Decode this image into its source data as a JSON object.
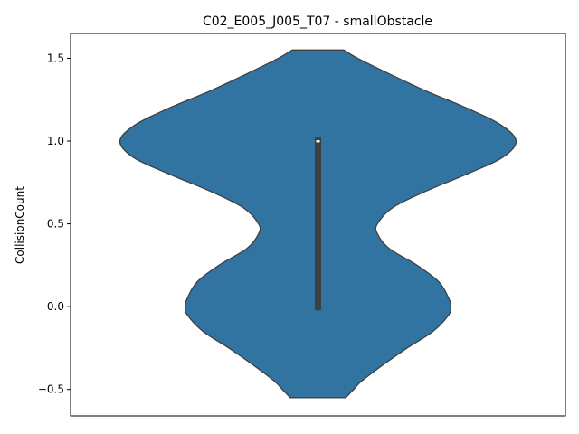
{
  "chart_data": {
    "type": "violin",
    "title": "C02_E005_J005_T07 - smallObstacle",
    "xlabel": "",
    "ylabel": "CollisionCount",
    "ylim": [
      -0.66,
      1.65
    ],
    "yticks": [
      -0.5,
      0.0,
      0.5,
      1.0,
      1.5
    ],
    "ytick_labels": [
      "−0.5",
      "0.0",
      "0.5",
      "1.0",
      "1.5"
    ],
    "xticks": [
      ""
    ],
    "grid": false,
    "colors": {
      "violin_fill": "#3274a1",
      "violin_edge": "#3f3f3f",
      "iqr_box": "#3f3f3f",
      "median": "#ffffff"
    },
    "violin": {
      "range": [
        -0.55,
        1.55
      ],
      "density_profile": [
        {
          "y": 1.55,
          "halfwidth": 0.13
        },
        {
          "y": 1.5,
          "halfwidth": 0.2
        },
        {
          "y": 1.4,
          "halfwidth": 0.37
        },
        {
          "y": 1.3,
          "halfwidth": 0.55
        },
        {
          "y": 1.2,
          "halfwidth": 0.75
        },
        {
          "y": 1.1,
          "halfwidth": 0.92
        },
        {
          "y": 1.0,
          "halfwidth": 1.0
        },
        {
          "y": 0.9,
          "halfwidth": 0.93
        },
        {
          "y": 0.8,
          "halfwidth": 0.75
        },
        {
          "y": 0.7,
          "halfwidth": 0.55
        },
        {
          "y": 0.6,
          "halfwidth": 0.38
        },
        {
          "y": 0.5,
          "halfwidth": 0.3
        },
        {
          "y": 0.44,
          "halfwidth": 0.3
        },
        {
          "y": 0.35,
          "halfwidth": 0.36
        },
        {
          "y": 0.25,
          "halfwidth": 0.5
        },
        {
          "y": 0.15,
          "halfwidth": 0.61
        },
        {
          "y": 0.05,
          "halfwidth": 0.66
        },
        {
          "y": 0.0,
          "halfwidth": 0.67
        },
        {
          "y": -0.05,
          "halfwidth": 0.66
        },
        {
          "y": -0.15,
          "halfwidth": 0.58
        },
        {
          "y": -0.25,
          "halfwidth": 0.45
        },
        {
          "y": -0.35,
          "halfwidth": 0.33
        },
        {
          "y": -0.45,
          "halfwidth": 0.22
        },
        {
          "y": -0.5,
          "halfwidth": 0.18
        },
        {
          "y": -0.55,
          "halfwidth": 0.14
        }
      ],
      "quartiles": {
        "q1": 0.0,
        "median": 1.0,
        "q3": 1.0
      }
    }
  }
}
